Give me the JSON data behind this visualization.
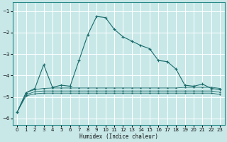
{
  "xlabel": "Humidex (Indice chaleur)",
  "bg_color": "#c8e8e8",
  "grid_color": "#ffffff",
  "line_color": "#1a6b6b",
  "xlim": [
    -0.5,
    23.5
  ],
  "ylim": [
    -6.3,
    -0.6
  ],
  "yticks": [
    -6,
    -5,
    -4,
    -3,
    -2,
    -1
  ],
  "xticks": [
    0,
    1,
    2,
    3,
    4,
    5,
    6,
    7,
    8,
    9,
    10,
    11,
    12,
    13,
    14,
    15,
    16,
    17,
    18,
    19,
    20,
    21,
    22,
    23
  ],
  "main_x": [
    0,
    1,
    2,
    3,
    4,
    5,
    6,
    7,
    8,
    9,
    10,
    11,
    12,
    13,
    14,
    15,
    16,
    17,
    18,
    19,
    20,
    21,
    22,
    23
  ],
  "main_y": [
    -5.7,
    -4.8,
    -4.6,
    -3.5,
    -4.55,
    -4.45,
    -4.5,
    -3.3,
    -2.1,
    -1.25,
    -1.3,
    -1.85,
    -2.2,
    -2.4,
    -2.6,
    -2.75,
    -3.3,
    -3.35,
    -3.7,
    -4.45,
    -4.5,
    -4.4,
    -4.6,
    -4.65
  ],
  "flat1_x": [
    0,
    1,
    2,
    3,
    4,
    5,
    6,
    7,
    8,
    9,
    10,
    11,
    12,
    13,
    14,
    15,
    16,
    17,
    18,
    19,
    20,
    21,
    22,
    23
  ],
  "flat1_y": [
    -5.7,
    -4.8,
    -4.65,
    -4.6,
    -4.58,
    -4.58,
    -4.58,
    -4.58,
    -4.58,
    -4.58,
    -4.58,
    -4.58,
    -4.58,
    -4.58,
    -4.58,
    -4.58,
    -4.58,
    -4.58,
    -4.58,
    -4.55,
    -4.55,
    -4.55,
    -4.55,
    -4.6
  ],
  "flat2_x": [
    0,
    1,
    2,
    3,
    4,
    5,
    6,
    7,
    8,
    9,
    10,
    11,
    12,
    13,
    14,
    15,
    16,
    17,
    18,
    19,
    20,
    21,
    22,
    23
  ],
  "flat2_y": [
    -5.7,
    -4.9,
    -4.75,
    -4.72,
    -4.72,
    -4.72,
    -4.72,
    -4.72,
    -4.72,
    -4.72,
    -4.72,
    -4.72,
    -4.72,
    -4.72,
    -4.72,
    -4.72,
    -4.72,
    -4.72,
    -4.72,
    -4.72,
    -4.72,
    -4.72,
    -4.72,
    -4.78
  ],
  "flat3_x": [
    0,
    1,
    2,
    3,
    4,
    5,
    6,
    7,
    8,
    9,
    10,
    11,
    12,
    13,
    14,
    15,
    16,
    17,
    18,
    19,
    20,
    21,
    22,
    23
  ],
  "flat3_y": [
    -5.7,
    -4.95,
    -4.85,
    -4.82,
    -4.82,
    -4.82,
    -4.82,
    -4.82,
    -4.82,
    -4.82,
    -4.82,
    -4.82,
    -4.82,
    -4.82,
    -4.82,
    -4.82,
    -4.82,
    -4.82,
    -4.82,
    -4.82,
    -4.82,
    -4.82,
    -4.82,
    -4.88
  ]
}
